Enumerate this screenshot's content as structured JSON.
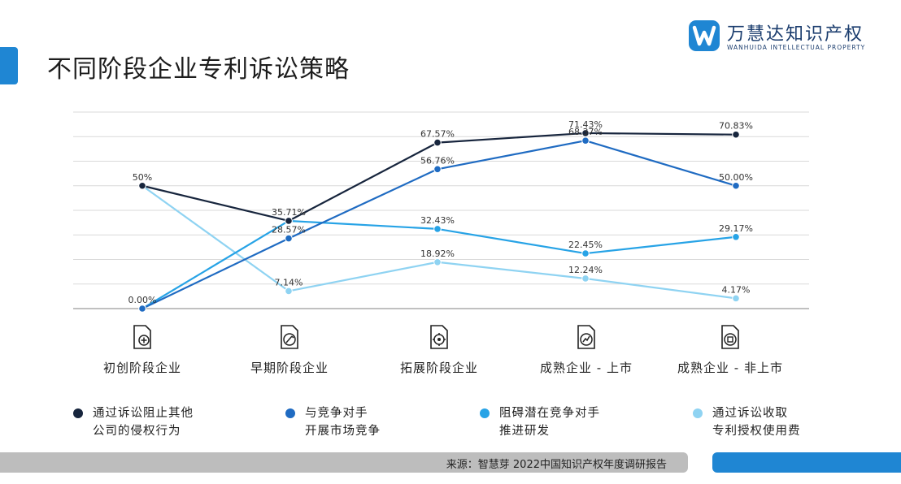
{
  "page": {
    "title": "不同阶段企业专利诉讼策略"
  },
  "logo": {
    "name": "万慧达知识产权",
    "subtitle": "WANHUIDA INTELLECTUAL PROPERTY"
  },
  "footer": {
    "source": "来源：智慧芽 2022中国知识产权年度调研报告"
  },
  "chart_data": {
    "type": "line",
    "categories": [
      "初创阶段企业",
      "早期阶段企业",
      "拓展阶段企业",
      "成熟企业 - 上市",
      "成熟企业 - 非上市"
    ],
    "ylim": [
      0,
      80
    ],
    "grid": true,
    "legend_position": "bottom",
    "series": [
      {
        "name": "通过诉讼阻止其他\n公司的侵权行为",
        "color": "#17253d",
        "values": [
          50,
          35.71,
          67.57,
          71.43,
          70.83
        ],
        "labels": [
          "",
          "35.71%",
          "67.57%",
          "71.43%",
          "70.83%"
        ]
      },
      {
        "name": "与竞争对手\n开展市场竞争",
        "color": "#1f6bc2",
        "values": [
          0,
          28.57,
          56.76,
          68.37,
          50
        ],
        "labels": [
          "0.00%",
          "28.57%",
          "56.76%",
          "68.37%",
          "50.00%"
        ]
      },
      {
        "name": "阻碍潜在竞争对手\n推进研发",
        "color": "#27a3e6",
        "values": [
          0,
          35.71,
          32.43,
          22.45,
          29.17
        ],
        "labels": [
          "",
          "",
          "32.43%",
          "22.45%",
          "29.17%"
        ]
      },
      {
        "name": "通过诉讼收取\n专利授权使用费",
        "color": "#8fd3f2",
        "values": [
          50,
          7.14,
          18.92,
          12.24,
          4.17
        ],
        "labels": [
          "50%",
          "7.14%",
          "18.92%",
          "12.24%",
          "4.17%"
        ]
      }
    ]
  },
  "stages": [
    {
      "label": "初创阶段企业",
      "icon": "document-plus-icon"
    },
    {
      "label": "早期阶段企业",
      "icon": "document-edit-icon"
    },
    {
      "label": "拓展阶段企业",
      "icon": "document-gear-icon"
    },
    {
      "label": "成熟企业 - 上市",
      "icon": "document-chart-icon"
    },
    {
      "label": "成熟企业 - 非上市",
      "icon": "document-seal-icon"
    }
  ]
}
